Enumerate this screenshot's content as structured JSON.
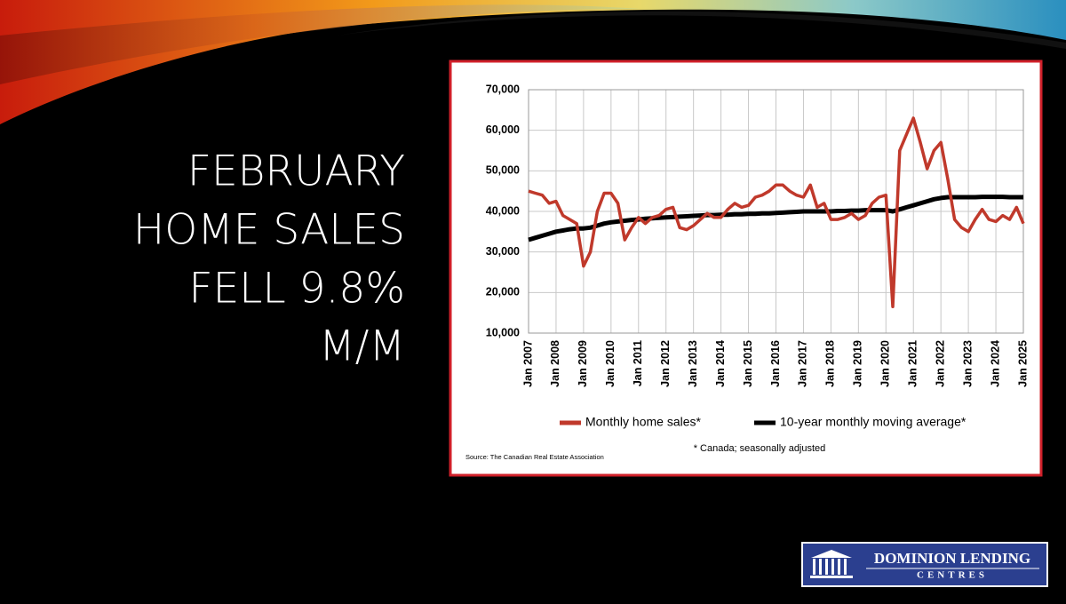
{
  "slide": {
    "title_lines": [
      "FEBRUARY",
      "HOME SALES",
      "FELL 9.8%",
      "M/M"
    ],
    "logo": {
      "line1": "DOMINION LENDING",
      "line2": "CENTRES"
    }
  },
  "chart_data": {
    "type": "line",
    "categories": [
      "Jan 2007",
      null,
      null,
      null,
      "Jan 2008",
      null,
      null,
      null,
      "Jan 2009",
      null,
      null,
      null,
      "Jan 2010",
      null,
      null,
      null,
      "Jan 2011",
      null,
      null,
      null,
      "Jan 2012",
      null,
      null,
      null,
      "Jan 2013",
      null,
      null,
      null,
      "Jan 2014",
      null,
      null,
      null,
      "Jan 2015",
      null,
      null,
      null,
      "Jan 2016",
      null,
      null,
      null,
      "Jan 2017",
      null,
      null,
      null,
      "Jan 2018",
      null,
      null,
      null,
      "Jan 2019",
      null,
      null,
      null,
      "Jan 2020",
      null,
      null,
      null,
      "Jan 2021",
      null,
      null,
      null,
      "Jan 2022",
      null,
      null,
      null,
      "Jan 2023",
      null,
      null,
      null,
      "Jan 2024",
      null,
      null,
      null,
      "Jan 2025"
    ],
    "series": [
      {
        "name": "Monthly home sales*",
        "color": "#c0392b",
        "values": [
          45000,
          44500,
          44000,
          42000,
          42500,
          39000,
          38000,
          37000,
          26500,
          30000,
          40000,
          44500,
          44500,
          42000,
          33000,
          36000,
          38500,
          37000,
          38500,
          39000,
          40500,
          41000,
          36000,
          35500,
          36500,
          38000,
          39500,
          38500,
          38500,
          40500,
          42000,
          41000,
          41500,
          43500,
          44000,
          45000,
          46500,
          46500,
          45000,
          44000,
          43500,
          46500,
          41000,
          42000,
          38000,
          38000,
          38500,
          39500,
          38000,
          39000,
          42000,
          43500,
          44000,
          16500,
          55000,
          59000,
          63000,
          57000,
          50500,
          55000,
          57000,
          48000,
          38000,
          36000,
          35000,
          38000,
          40500,
          38000,
          37500,
          39000,
          38000,
          41000,
          37000
        ]
      },
      {
        "name": "10-year monthly moving average*",
        "color": "#000000",
        "values": [
          33000,
          33500,
          34000,
          34500,
          35000,
          35300,
          35600,
          35800,
          35800,
          36000,
          36500,
          37000,
          37300,
          37500,
          37700,
          37900,
          38000,
          38200,
          38300,
          38400,
          38500,
          38600,
          38700,
          38800,
          38900,
          39000,
          39100,
          39100,
          39200,
          39200,
          39300,
          39300,
          39400,
          39400,
          39500,
          39500,
          39600,
          39700,
          39800,
          39900,
          40000,
          40000,
          40000,
          40000,
          40000,
          40100,
          40100,
          40200,
          40200,
          40300,
          40300,
          40300,
          40300,
          40000,
          40500,
          41000,
          41500,
          42000,
          42500,
          43000,
          43300,
          43500,
          43500,
          43500,
          43500,
          43500,
          43600,
          43600,
          43600,
          43600,
          43500,
          43500,
          43500
        ]
      }
    ],
    "ylim": [
      10000,
      70000
    ],
    "yticks": [
      {
        "value": 10000,
        "label": "10,000"
      },
      {
        "value": 20000,
        "label": "20,000"
      },
      {
        "value": 30000,
        "label": "30,000"
      },
      {
        "value": 40000,
        "label": "40,000"
      },
      {
        "value": 50000,
        "label": "50,000"
      },
      {
        "value": 60000,
        "label": "60,000"
      },
      {
        "value": 70000,
        "label": "70,000"
      }
    ],
    "grid": true,
    "note": "* Canada; seasonally adjusted",
    "source": "Source: The Canadian Real Estate Association"
  }
}
